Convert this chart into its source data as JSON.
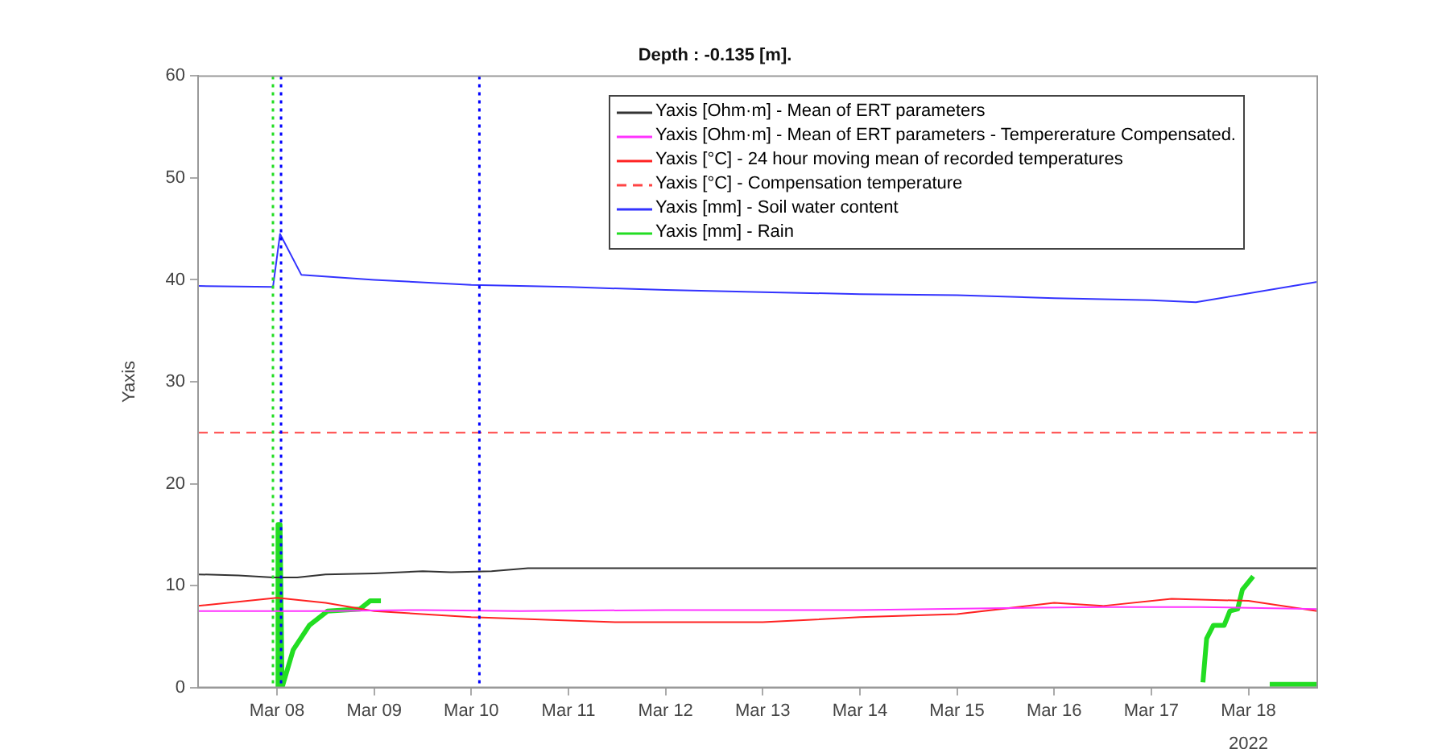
{
  "chart_data": {
    "type": "line",
    "title": "Depth : -0.135 [m].",
    "ylabel": "Yaxis",
    "xlim": [
      "2022-03-07T04:30",
      "2022-03-18T17:00"
    ],
    "xticks": [
      {
        "value": "2022-03-08",
        "label": "Mar 08"
      },
      {
        "value": "2022-03-09",
        "label": "Mar 09"
      },
      {
        "value": "2022-03-10",
        "label": "Mar 10"
      },
      {
        "value": "2022-03-11",
        "label": "Mar 11"
      },
      {
        "value": "2022-03-12",
        "label": "Mar 12"
      },
      {
        "value": "2022-03-13",
        "label": "Mar 13"
      },
      {
        "value": "2022-03-14",
        "label": "Mar 14"
      },
      {
        "value": "2022-03-15",
        "label": "Mar 15"
      },
      {
        "value": "2022-03-16",
        "label": "Mar 16"
      },
      {
        "value": "2022-03-17",
        "label": "Mar 17"
      },
      {
        "value": "2022-03-18",
        "label": "Mar 18"
      }
    ],
    "ylim": [
      0,
      60
    ],
    "yticks": [
      0,
      10,
      20,
      30,
      40,
      50,
      60
    ],
    "grid": false,
    "legend": "top right",
    "marker": "none",
    "annotations": [
      "2022"
    ],
    "ref_lines": [
      {
        "axis": "x",
        "value": "2022-03-07T23:00",
        "color": "#22dd22",
        "line_style": "dotted"
      },
      {
        "axis": "x",
        "value": "2022-03-08T01:00",
        "color": "#0000ff",
        "line_style": "dotted"
      },
      {
        "axis": "x",
        "value": "2022-03-10T02:00",
        "color": "#0000ff",
        "line_style": "dotted"
      }
    ],
    "series": [
      {
        "name": "Yaxis [Ohm·m] - Mean of ERT parameters",
        "color": "#333333",
        "line_style": "solid",
        "x": [
          "2022-03-07T04:30",
          "2022-03-07T14:30",
          "2022-03-07T23:00",
          "2022-03-08T05:00",
          "2022-03-08T12:00",
          "2022-03-09T00:00",
          "2022-03-09T12:00",
          "2022-03-09T19:00",
          "2022-03-10T05:00",
          "2022-03-10T14:00",
          "2022-03-11T00:00",
          "2022-03-14T00:00",
          "2022-03-18T17:00"
        ],
        "values": [
          11.1,
          11.0,
          10.8,
          10.8,
          11.1,
          11.2,
          11.4,
          11.3,
          11.4,
          11.7,
          11.7,
          11.7,
          11.7
        ]
      },
      {
        "name": "Yaxis [Ohm·m] - Mean of ERT parameters - Tempererature Compensated.",
        "color": "#ff33ff",
        "line_style": "solid",
        "x": [
          "2022-03-07T04:30",
          "2022-03-08T12:00",
          "2022-03-09T12:00",
          "2022-03-10T12:00",
          "2022-03-12T00:00",
          "2022-03-14T00:00",
          "2022-03-15T12:00",
          "2022-03-16T12:00",
          "2022-03-17T12:00",
          "2022-03-18T17:00"
        ],
        "values": [
          7.5,
          7.5,
          7.6,
          7.5,
          7.6,
          7.6,
          7.8,
          7.9,
          7.9,
          7.7
        ]
      },
      {
        "name": "Yaxis [°C] - 24 hour moving mean of recorded temperatures",
        "color": "#ff2222",
        "line_style": "solid",
        "x": [
          "2022-03-07T04:30",
          "2022-03-08T00:00",
          "2022-03-08T12:00",
          "2022-03-09T00:00",
          "2022-03-10T00:00",
          "2022-03-11T12:00",
          "2022-03-13T00:00",
          "2022-03-14T00:00",
          "2022-03-15T00:00",
          "2022-03-16T00:00",
          "2022-03-16T12:00",
          "2022-03-17T05:00",
          "2022-03-18T00:00",
          "2022-03-18T17:00"
        ],
        "values": [
          8.0,
          8.8,
          8.3,
          7.5,
          6.9,
          6.4,
          6.4,
          6.9,
          7.2,
          8.3,
          8.0,
          8.7,
          8.5,
          7.5
        ]
      },
      {
        "name": "Yaxis [°C] - Compensation temperature",
        "color": "#ff4444",
        "line_style": "dashed",
        "x": [
          "2022-03-07T04:30",
          "2022-03-18T17:00"
        ],
        "values": [
          25,
          25
        ]
      },
      {
        "name": "Yaxis [mm] - Soil water content",
        "color": "#3333ff",
        "line_style": "solid",
        "x": [
          "2022-03-07T04:30",
          "2022-03-07T23:00",
          "2022-03-08T00:45",
          "2022-03-08T06:00",
          "2022-03-09T00:00",
          "2022-03-10T00:00",
          "2022-03-11T00:00",
          "2022-03-12T00:00",
          "2022-03-13T00:00",
          "2022-03-14T00:00",
          "2022-03-15T00:00",
          "2022-03-16T00:00",
          "2022-03-17T00:00",
          "2022-03-17T11:00",
          "2022-03-18T17:00"
        ],
        "values": [
          39.4,
          39.3,
          44.5,
          40.5,
          40.0,
          39.5,
          39.3,
          39.0,
          38.8,
          38.6,
          38.5,
          38.2,
          38.0,
          37.8,
          39.8
        ]
      },
      {
        "name": "Yaxis [mm] - Rain",
        "color": "#22dd22",
        "line_style": "solid",
        "x": [
          "2022-03-08T00:00",
          "2022-03-08T00:15",
          "2022-03-08T00:45",
          "2022-03-08T01:15",
          "2022-03-08T04:00",
          "2022-03-08T08:00",
          "2022-03-08T12:30",
          "2022-03-08T20:30",
          "2022-03-08T23:00",
          "2022-03-09T01:40",
          "2022-03-12T00:00",
          "2022-03-17T12:45",
          "2022-03-17T13:40",
          "2022-03-17T15:20",
          "2022-03-17T18:00",
          "2022-03-17T19:25",
          "2022-03-17T21:20",
          "2022-03-17T22:30",
          "2022-03-18T01:10",
          "2022-03-18T03:00",
          "2022-03-18T05:15",
          "2022-03-18T17:00"
        ],
        "values": [
          0,
          16,
          16,
          0,
          3.7,
          6.1,
          7.5,
          7.7,
          8.5,
          8.5,
          null,
          0.5,
          4.8,
          6.1,
          6.1,
          7.5,
          7.7,
          9.6,
          10.9,
          null,
          0.3,
          0.3
        ]
      }
    ]
  }
}
